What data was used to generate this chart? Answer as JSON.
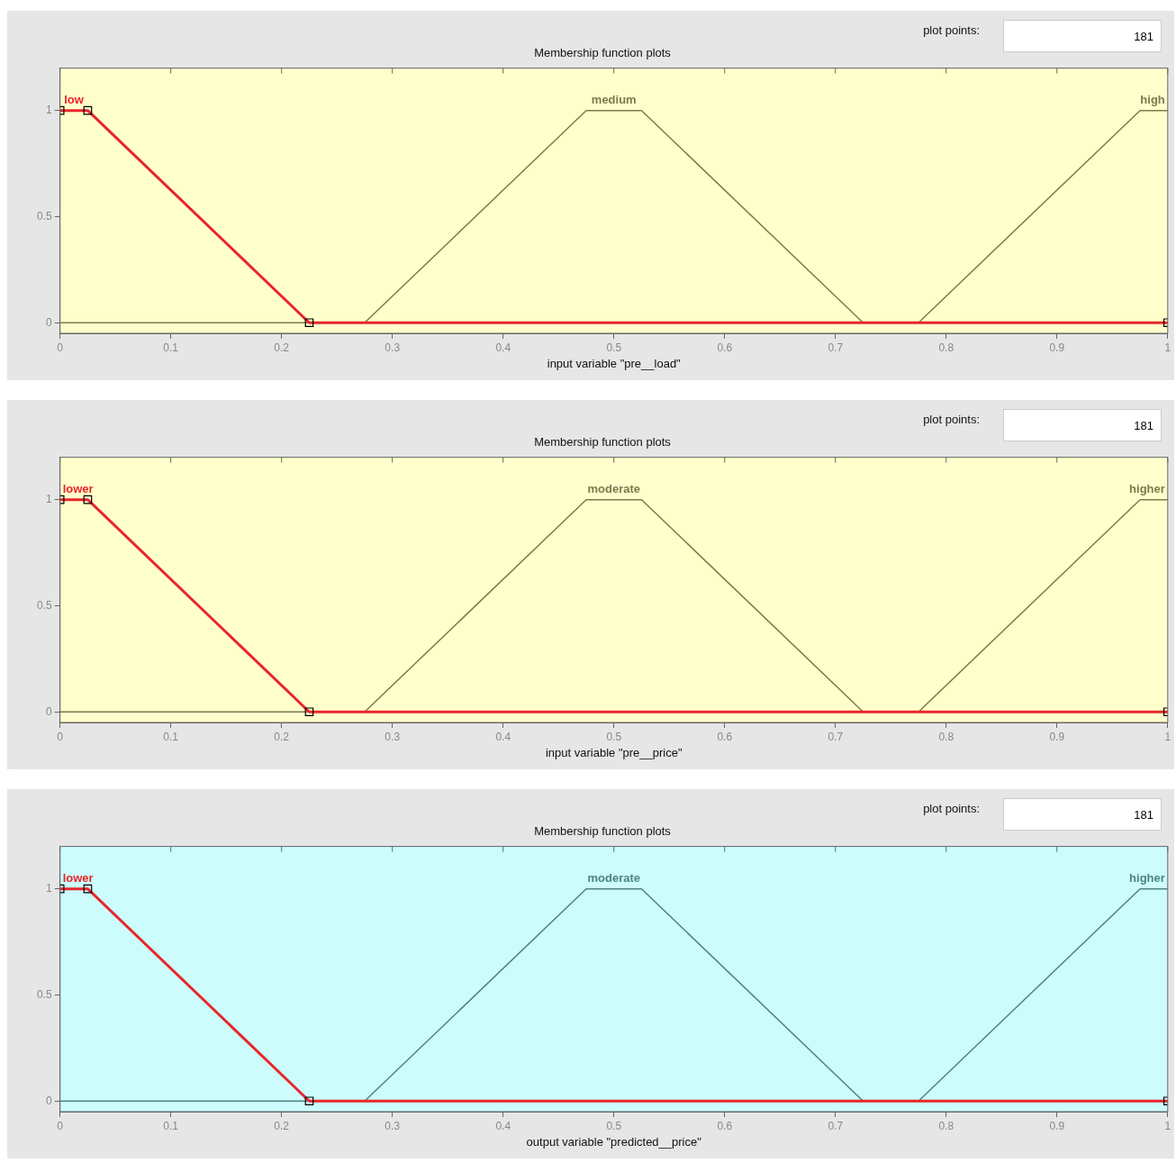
{
  "chart_data": [
    {
      "type": "line",
      "title": "Membership function plots",
      "xlabel": "input variable \"pre__load\"",
      "xlim": [
        0,
        1
      ],
      "xticks": [
        0,
        0.1,
        0.2,
        0.3,
        0.4,
        0.5,
        0.6,
        0.7,
        0.8,
        0.9,
        1
      ],
      "ylim": [
        -0.05,
        1.2
      ],
      "yticks": [
        0,
        0.5,
        1
      ],
      "legend": false,
      "grid": false,
      "annotations": [
        "plot points:",
        "181"
      ],
      "series": [
        {
          "name": "low",
          "color": "#e8262a",
          "marker": "square",
          "x": [
            0,
            0.025,
            0.225,
            1
          ],
          "values": [
            1,
            1,
            0,
            0
          ]
        },
        {
          "name": "medium",
          "color": "#7d7a4e",
          "x": [
            0,
            0.275,
            0.475,
            0.525,
            0.725,
            1
          ],
          "values": [
            0,
            0,
            1,
            1,
            0,
            0
          ]
        },
        {
          "name": "high",
          "color": "#7d7a4e",
          "x": [
            0.775,
            0.975,
            1
          ],
          "values": [
            0,
            1,
            1
          ]
        }
      ]
    },
    {
      "type": "line",
      "title": "Membership function plots",
      "xlabel": "input variable \"pre__price\"",
      "xlim": [
        0,
        1
      ],
      "xticks": [
        0,
        0.1,
        0.2,
        0.3,
        0.4,
        0.5,
        0.6,
        0.7,
        0.8,
        0.9,
        1
      ],
      "ylim": [
        -0.05,
        1.2
      ],
      "yticks": [
        0,
        0.5,
        1
      ],
      "legend": false,
      "grid": false,
      "annotations": [
        "plot points:",
        "181"
      ],
      "series": [
        {
          "name": "lower",
          "color": "#e8262a",
          "marker": "square",
          "x": [
            0,
            0.025,
            0.225,
            1
          ],
          "values": [
            1,
            1,
            0,
            0
          ]
        },
        {
          "name": "moderate",
          "color": "#7d7a4e",
          "x": [
            0,
            0.275,
            0.475,
            0.525,
            0.725,
            1
          ],
          "values": [
            0,
            0,
            1,
            1,
            0,
            0
          ]
        },
        {
          "name": "higher",
          "color": "#7d7a4e",
          "x": [
            0.775,
            0.975,
            1
          ],
          "values": [
            0,
            1,
            1
          ]
        }
      ]
    },
    {
      "type": "line",
      "title": "Membership function plots",
      "xlabel": "output variable \"predicted__price\"",
      "xlim": [
        0,
        1
      ],
      "xticks": [
        0,
        0.1,
        0.2,
        0.3,
        0.4,
        0.5,
        0.6,
        0.7,
        0.8,
        0.9,
        1
      ],
      "ylim": [
        -0.05,
        1.2
      ],
      "yticks": [
        0,
        0.5,
        1
      ],
      "legend": false,
      "grid": false,
      "annotations": [
        "plot points:",
        "181"
      ],
      "series": [
        {
          "name": "lower",
          "color": "#e8262a",
          "marker": "square",
          "x": [
            0,
            0.025,
            0.225,
            1
          ],
          "values": [
            1,
            1,
            0,
            0
          ]
        },
        {
          "name": "moderate",
          "color": "#4f8585",
          "x": [
            0,
            0.275,
            0.475,
            0.525,
            0.725,
            1
          ],
          "values": [
            0,
            0,
            1,
            1,
            0,
            0
          ]
        },
        {
          "name": "higher",
          "color": "#4f8585",
          "x": [
            0.775,
            0.975,
            1
          ],
          "values": [
            0,
            1,
            1
          ]
        }
      ]
    }
  ]
}
